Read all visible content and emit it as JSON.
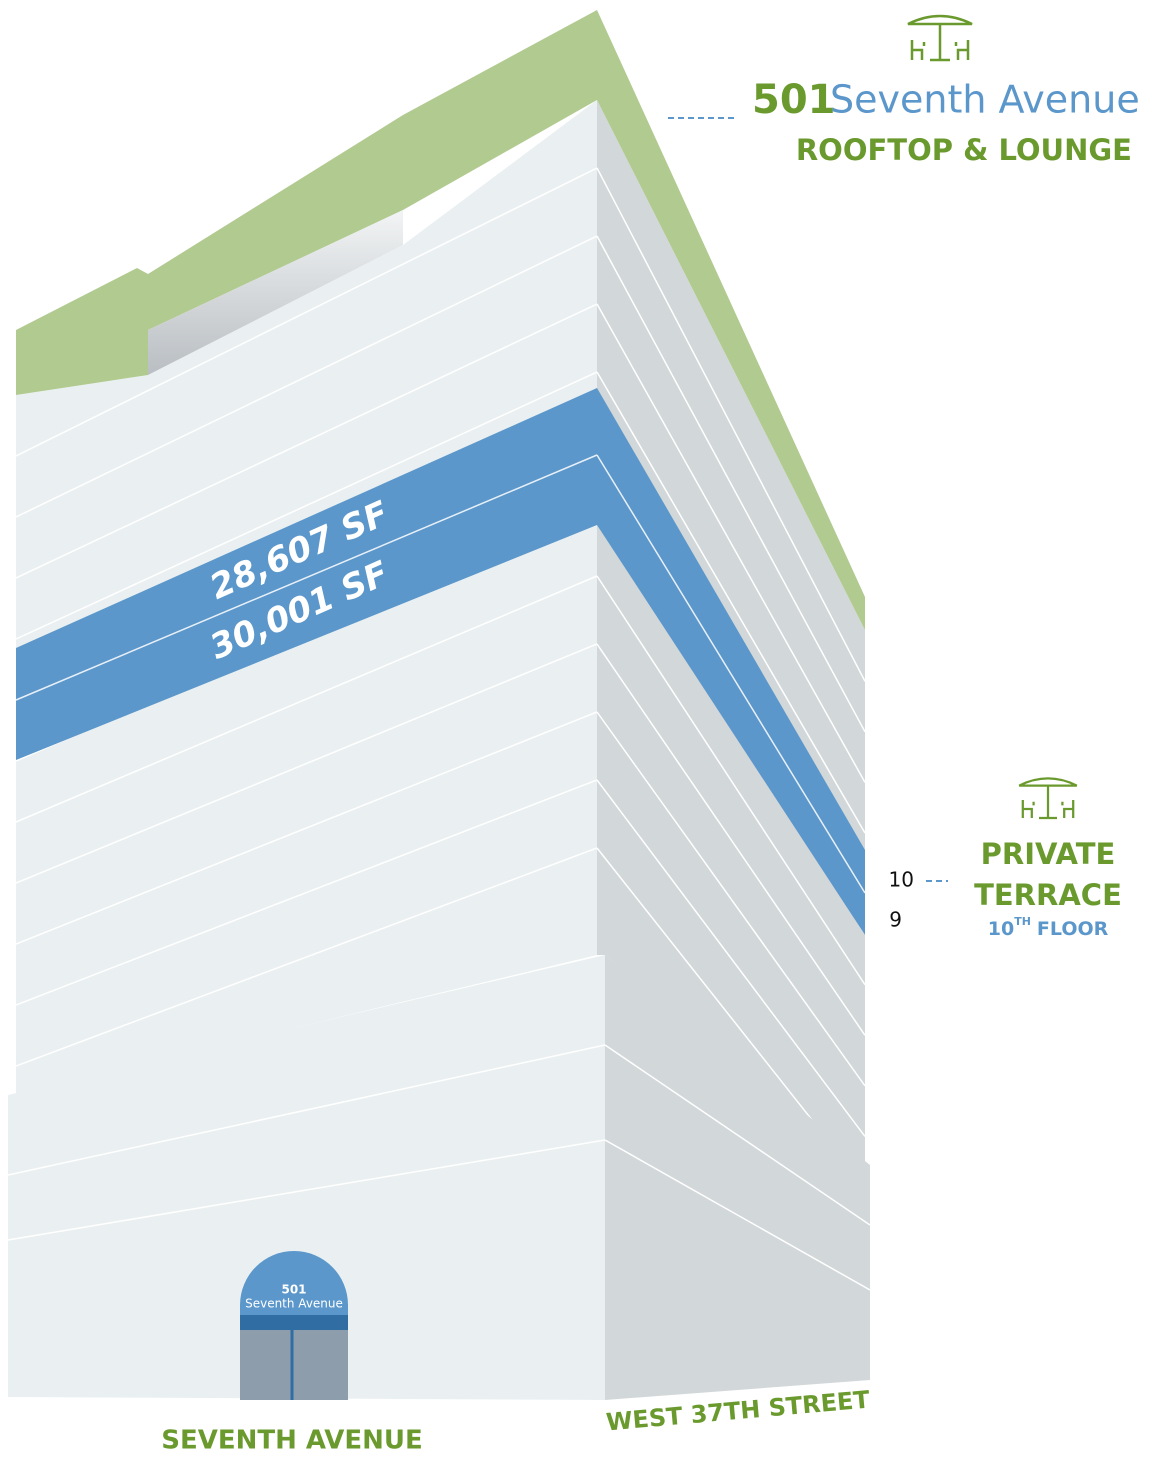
{
  "rooftop": {
    "number": "501",
    "name": "Seventh Avenue",
    "label": "ROOFTOP & LOUNGE"
  },
  "floors": [
    {
      "area": "28,607 SF"
    },
    {
      "area": "30,001 SF"
    }
  ],
  "floor_markers": [
    "10",
    "9"
  ],
  "terrace": {
    "line1": "PRIVATE",
    "line2": "TERRACE",
    "floor_number": "10",
    "floor_suffix": "TH",
    "floor_word": "FLOOR"
  },
  "entrance": {
    "number": "501",
    "name": "Seventh Avenue"
  },
  "streets": [
    "SEVENTH AVENUE",
    "WEST 37TH STREET"
  ]
}
